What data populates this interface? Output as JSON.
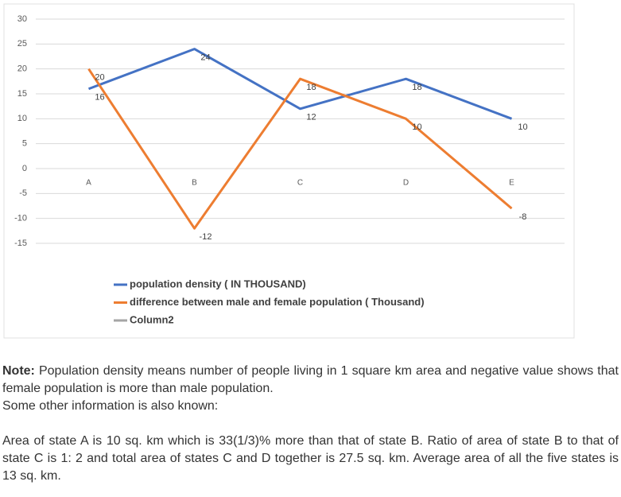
{
  "chart_data": {
    "type": "line",
    "categories": [
      "A",
      "B",
      "C",
      "D",
      "E"
    ],
    "series": [
      {
        "name": "population density ( IN THOUSAND)",
        "color": "#4472c4",
        "values": [
          16,
          24,
          12,
          18,
          10
        ]
      },
      {
        "name": "difference between male and female population ( Thousand)",
        "color": "#ed7d31",
        "values": [
          20,
          -12,
          18,
          10,
          -8
        ]
      },
      {
        "name": "Column2",
        "color": "#a5a5a5",
        "values": [
          null,
          null,
          null,
          null,
          null
        ]
      }
    ],
    "ylim": [
      -15,
      30
    ],
    "yticks": [
      -15,
      -10,
      -5,
      0,
      5,
      10,
      15,
      20,
      25,
      30
    ],
    "grid": true,
    "data_labels": true
  },
  "note": {
    "label": "Note:",
    "text": "Population density means number of people living in 1 square km area and negative value shows that female population is more than male population.",
    "extra": "Some other information is also known:",
    "paragraph": "Area of state A is 10 sq. km which is 33(1/3)% more than that of state B. Ratio of area of state B to that of state C is 1: 2 and total area of states C and D together is 27.5 sq. km. Average area of all the five states is 13 sq. km."
  }
}
